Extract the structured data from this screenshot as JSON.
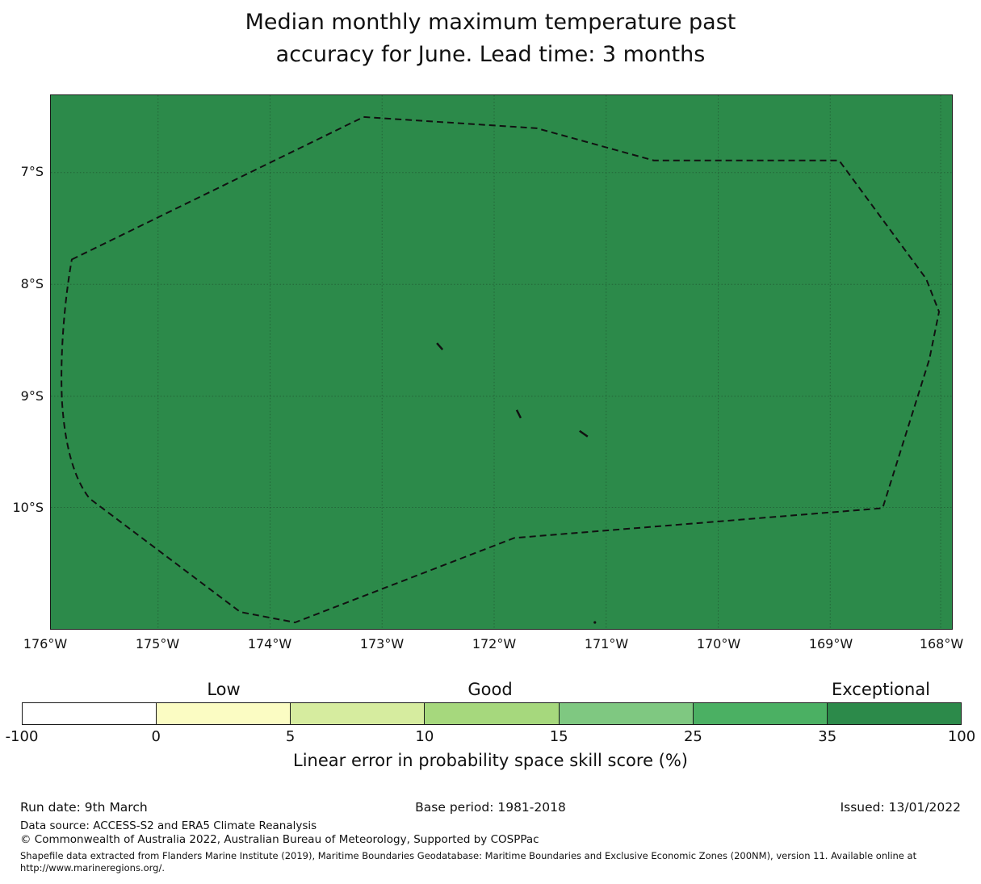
{
  "title": {
    "line1": "Median monthly maximum temperature past",
    "line2": "accuracy for June. Lead time: 3 months"
  },
  "map": {
    "fill_color": "#2c8a4a",
    "boundary_color": "#111111",
    "gridline_color": "#1e4529",
    "lat_ticks": [
      "7°S",
      "8°S",
      "9°S",
      "10°S"
    ],
    "lon_ticks": [
      "176°W",
      "175°W",
      "174°W",
      "173°W",
      "172°W",
      "171°W",
      "170°W",
      "169°W",
      "168°W"
    ]
  },
  "colorbar": {
    "categories": [
      "Low",
      "Good",
      "Exceptional"
    ],
    "tick_labels": [
      "-100",
      "0",
      "5",
      "10",
      "15",
      "25",
      "35",
      "100"
    ],
    "segment_colors": [
      "#ffffff",
      "#fbfcc3",
      "#d6ec9f",
      "#a6d87d",
      "#7fc881",
      "#4bb063",
      "#2c8a4a"
    ],
    "caption": "Linear error in probability space skill score (%)"
  },
  "chart_data": {
    "type": "heatmap",
    "subtype": "geographic choropleth map with discrete colorbar",
    "title": "Median monthly maximum temperature past accuracy for June. Lead time: 3 months",
    "x_tick_labels": [
      "176°W",
      "175°W",
      "174°W",
      "173°W",
      "172°W",
      "171°W",
      "170°W",
      "169°W",
      "168°W"
    ],
    "y_tick_labels": [
      "7°S",
      "8°S",
      "9°S",
      "10°S"
    ],
    "x_range": "approx 176.1°W to 167.9°W",
    "y_range": "approx 6.3°S to 11.1°S",
    "grid": "dotted graticule at 1° spacing",
    "colorbar_label": "Linear error in probability space skill score (%)",
    "colorbar_boundaries": [
      -100,
      0,
      5,
      10,
      15,
      25,
      35,
      100
    ],
    "colorbar_category_spans": {
      "Low": "0 to 5",
      "Good": "10 to 15",
      "Exceptional": "35 to 100"
    },
    "values": "Entire mapped region is a single uniform dark-green fill in the 35-100 (Exceptional) skill bin; a dashed polygon marks the exclusive economic zone boundary; four tiny island/atoll marks appear inside it",
    "legend_position": "horizontal colorbar below map"
  },
  "footer": {
    "run_date": "Run date: 9th March",
    "base_period": "Base period: 1981-2018",
    "issued": "Issued: 13/01/2022",
    "data_source": "Data source: ACCESS-S2 and ERA5 Climate Reanalysis",
    "copyright": "© Commonwealth of Australia 2022, Australian Bureau of Meteorology, Supported by COSPPac",
    "shapefile_note": "Shapefile data extracted from Flanders Marine Institute (2019), Maritime Boundaries Geodatabase: Maritime Boundaries and Exclusive Economic Zones (200NM), version 11. Available online at http://www.marineregions.org/."
  }
}
